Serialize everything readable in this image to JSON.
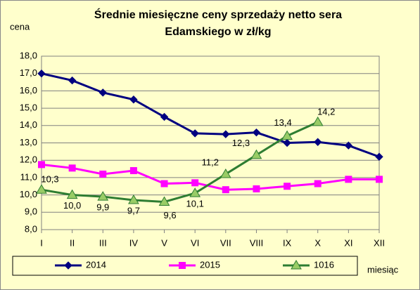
{
  "chart_data": {
    "type": "line",
    "title": [
      "Średnie miesięczne ceny sprzedaży netto sera",
      "Edamskiego w zł/kg"
    ],
    "y_label": "cena",
    "x_label": "miesiąc",
    "categories": [
      "I",
      "II",
      "III",
      "IV",
      "V",
      "VI",
      "VII",
      "VIII",
      "IX",
      "X",
      "XI",
      "XII"
    ],
    "series": [
      {
        "name": "2014",
        "color": "#000080",
        "marker": "diamond",
        "values": [
          17.0,
          16.6,
          15.9,
          15.5,
          14.5,
          13.55,
          13.5,
          13.6,
          13.0,
          13.05,
          12.85,
          12.2
        ]
      },
      {
        "name": "2015",
        "color": "#ff00ff",
        "marker": "square",
        "values": [
          11.75,
          11.55,
          11.2,
          11.4,
          10.65,
          10.7,
          10.3,
          10.35,
          10.5,
          10.65,
          10.9,
          10.9
        ]
      },
      {
        "name": "1016",
        "color": "#2e7d32",
        "marker": "triangle",
        "values": [
          10.3,
          10.0,
          9.9,
          9.7,
          9.6,
          10.1,
          11.2,
          12.3,
          13.4,
          14.2,
          null,
          null
        ],
        "value_labels": [
          "10,3",
          "10,0",
          "9,9",
          "9,7",
          "9,6",
          "10,1",
          "11,2",
          "12,3",
          "13,4",
          "14,2",
          null,
          null
        ]
      }
    ],
    "ylim": [
      8,
      18
    ],
    "yticks": [
      {
        "value": 8,
        "label": "8,0"
      },
      {
        "value": 9,
        "label": "9,0"
      },
      {
        "value": 10,
        "label": "10,0"
      },
      {
        "value": 11,
        "label": "11,0"
      },
      {
        "value": 12,
        "label": "12,0"
      },
      {
        "value": 13,
        "label": "13,0"
      },
      {
        "value": 14,
        "label": "14,0"
      },
      {
        "value": 15,
        "label": "15,0"
      },
      {
        "value": 16,
        "label": "16,0"
      },
      {
        "value": 17,
        "label": "17,0"
      },
      {
        "value": 18,
        "label": "18,0"
      }
    ],
    "grid": true,
    "legend": "bottom"
  }
}
